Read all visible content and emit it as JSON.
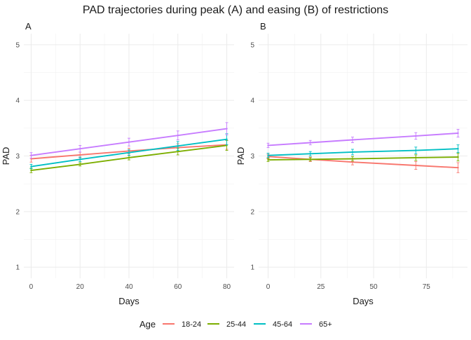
{
  "title": "PAD trajectories during peak (A) and easing (B) of restrictions",
  "legend": {
    "title": "Age",
    "position": "bottom",
    "entries": [
      {
        "label": "18-24",
        "color": "#F8766D"
      },
      {
        "label": "25-44",
        "color": "#7CAE00"
      },
      {
        "label": "45-64",
        "color": "#00BFC4"
      },
      {
        "label": "65+",
        "color": "#C77CFF"
      }
    ]
  },
  "chart_data": [
    {
      "type": "line",
      "panel_label": "A",
      "xlabel": "Days",
      "ylabel": "PAD",
      "xlim": [
        -3,
        83
      ],
      "ylim": [
        0.8,
        5.2
      ],
      "xticks": [
        0,
        20,
        40,
        60,
        80
      ],
      "yticks": [
        1,
        2,
        3,
        4,
        5
      ],
      "grid": true,
      "series": [
        {
          "name": "18-24",
          "x": [
            0,
            20,
            40,
            60,
            80
          ],
          "y": [
            2.95,
            3.02,
            3.09,
            3.15,
            3.2
          ],
          "err": [
            0.06,
            0.05,
            0.05,
            0.07,
            0.08
          ]
        },
        {
          "name": "25-44",
          "x": [
            0,
            20,
            40,
            60,
            80
          ],
          "y": [
            2.74,
            2.85,
            2.97,
            3.08,
            3.19
          ],
          "err": [
            0.04,
            0.03,
            0.04,
            0.06,
            0.09
          ]
        },
        {
          "name": "45-64",
          "x": [
            0,
            20,
            40,
            60,
            80
          ],
          "y": [
            2.81,
            2.94,
            3.06,
            3.18,
            3.3
          ],
          "err": [
            0.04,
            0.04,
            0.05,
            0.08,
            0.1
          ]
        },
        {
          "name": "65+",
          "x": [
            0,
            20,
            40,
            60,
            80
          ],
          "y": [
            3.01,
            3.13,
            3.25,
            3.37,
            3.49
          ],
          "err": [
            0.05,
            0.06,
            0.07,
            0.08,
            0.11
          ]
        }
      ]
    },
    {
      "type": "line",
      "panel_label": "B",
      "xlabel": "Days",
      "ylabel": "PAD",
      "xlim": [
        -4.5,
        94.5
      ],
      "ylim": [
        0.8,
        5.2
      ],
      "xticks": [
        0,
        25,
        50,
        75
      ],
      "yticks": [
        1,
        2,
        3,
        4,
        5
      ],
      "grid": true,
      "series": [
        {
          "name": "18-24",
          "x": [
            0,
            20,
            40,
            70,
            90
          ],
          "y": [
            2.99,
            2.94,
            2.89,
            2.83,
            2.79
          ],
          "err": [
            0.04,
            0.04,
            0.05,
            0.07,
            0.09
          ]
        },
        {
          "name": "25-44",
          "x": [
            0,
            20,
            40,
            70,
            90
          ],
          "y": [
            2.93,
            2.94,
            2.95,
            2.97,
            2.98
          ],
          "err": [
            0.03,
            0.03,
            0.04,
            0.05,
            0.07
          ]
        },
        {
          "name": "45-64",
          "x": [
            0,
            20,
            40,
            70,
            90
          ],
          "y": [
            3.01,
            3.04,
            3.07,
            3.1,
            3.13
          ],
          "err": [
            0.04,
            0.04,
            0.05,
            0.06,
            0.07
          ]
        },
        {
          "name": "65+",
          "x": [
            0,
            20,
            40,
            70,
            90
          ],
          "y": [
            3.19,
            3.24,
            3.29,
            3.36,
            3.41
          ],
          "err": [
            0.04,
            0.04,
            0.05,
            0.06,
            0.07
          ]
        }
      ]
    }
  ]
}
